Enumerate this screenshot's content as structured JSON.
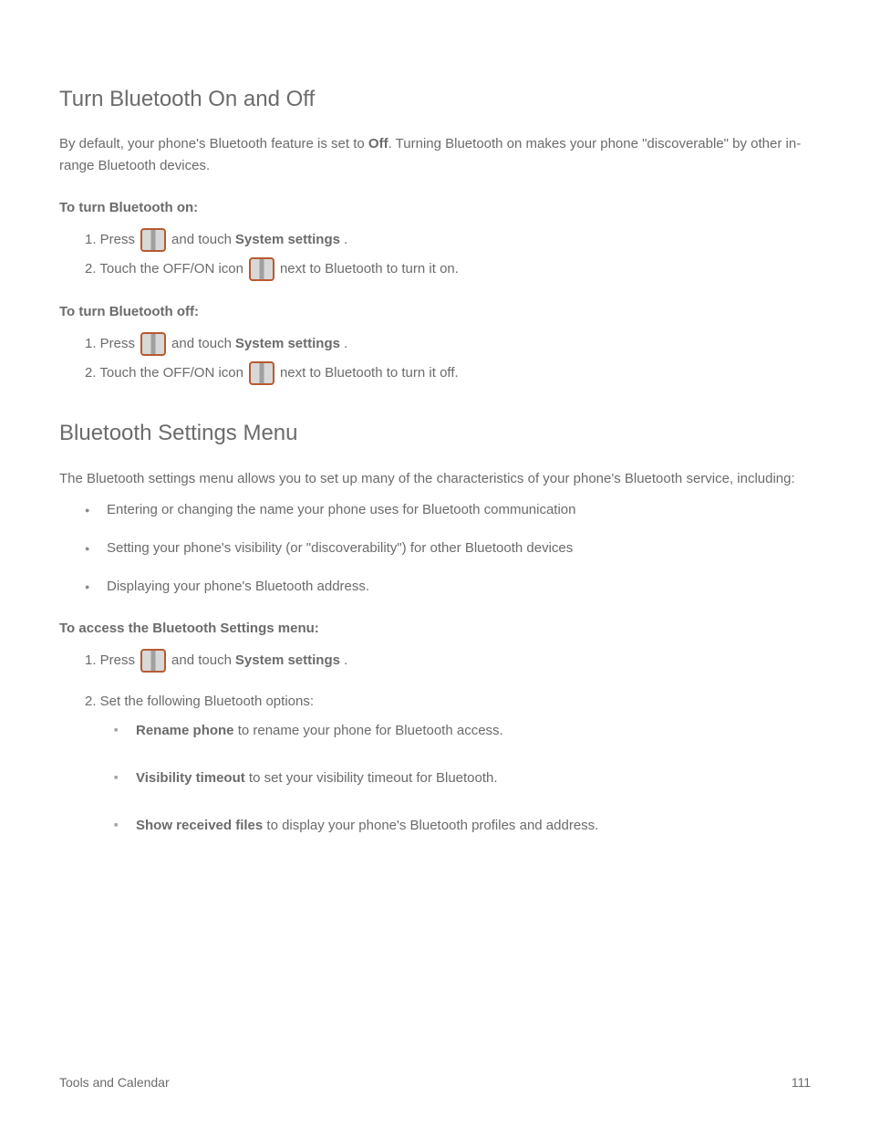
{
  "h1": "Turn Bluetooth On and Off",
  "p1_a": "By default",
  "p1_b": ", your phone's Bluetooth feature is set to ",
  "p1_c": "Off",
  "p1_d": ". Turning Bluetooth on makes your phone \"discoverable\" by other in",
  "p1_e": "-range Bluetooth devices.",
  "sub_on": "To turn Bluetooth on:",
  "on_1a": "1.   Press ",
  "on_1b": " and touch",
  "on_1c": " System settings",
  "on_1d": ".",
  "on_2a": "2.   Touch the OFF/ON icon ",
  "on_2b": " next to Bluetooth to turn it on.",
  "sub_off": "To turn Bluetooth off:",
  "off_1a": "1.   Press ",
  "off_1b": " and touch",
  "off_1c": " System settings",
  "off_1d": ".",
  "off_2a": "2.   Touch the OFF/ON icon ",
  "off_2b": " next to Bluetooth to turn it off.",
  "h2": "Bluetooth Settings Menu",
  "p2_a": "The Bluetooth settings menu allows you to set up many of the characteristics of ",
  "p2_b": "your phone's Bluetooth ",
  "p2_c": "service, including:",
  "li1": "Entering or changing the name your phone uses for Bluetooth communication",
  "li2": "Setting your phone's visibility (or \"discoverability\") for other Bluetooth",
  "li2b": " devices",
  "li3": "Displaying your phone's Bluetooth address.",
  "sub_menu": "To access the Bluetooth Settings menu:",
  "m1a": "1.   Press ",
  "m1b": " and touch",
  "m1c": " System settings",
  "m1d": ".",
  "m2": "2.   Set the following Bluetooth options:",
  "sq1a": "Rename phone",
  "sq1b": " to rename your phone for Bluetooth access.",
  "sq2a": "Visibility timeout",
  "sq2b": " to set your visibility timeout for Bluetooth.",
  "sq3a": "Show received files",
  "sq3b": " to display your phone's Bluetooth profiles and address.",
  "foot_left": "Tools and Calendar",
  "foot_right": "111",
  "icon_colors": {
    "border": "#b85a2f",
    "gradient_light": "#d8d8d8",
    "gradient_dark": "#a0a0a0"
  }
}
